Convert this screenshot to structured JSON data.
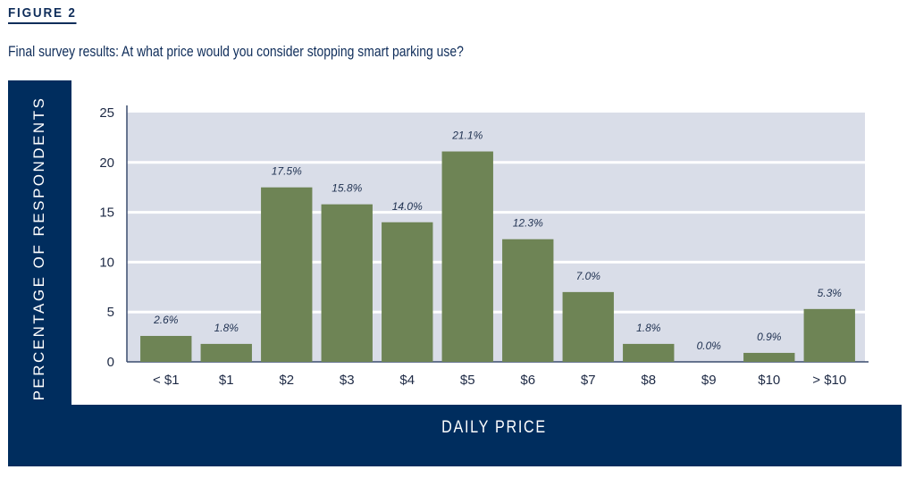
{
  "figure": {
    "label": "FIGURE 2",
    "title": "Final survey results: At what price would you consider stopping smart parking use?"
  },
  "colors": {
    "frame": "#002d5e",
    "plot_bg": "#d9dde8",
    "bar": "#6e8455",
    "grid": "#ffffff"
  },
  "chart_data": {
    "type": "bar",
    "title": "Final survey results: At what price would you consider stopping smart parking use?",
    "xlabel": "DAILY PRICE",
    "ylabel": "PERCENTAGE OF RESPONDENTS",
    "categories": [
      "< $1",
      "$1",
      "$2",
      "$3",
      "$4",
      "$5",
      "$6",
      "$7",
      "$8",
      "$9",
      "$10",
      "> $10"
    ],
    "values": [
      2.6,
      1.8,
      17.5,
      15.8,
      14.0,
      21.1,
      12.3,
      7.0,
      1.8,
      0.0,
      0.9,
      5.3
    ],
    "data_labels": [
      "2.6%",
      "1.8%",
      "17.5%",
      "15.8%",
      "14.0%",
      "21.1%",
      "12.3%",
      "7.0%",
      "1.8%",
      "0.0%",
      "0.9%",
      "5.3%"
    ],
    "ylim": [
      0,
      25
    ],
    "yticks": [
      0,
      5,
      10,
      15,
      20,
      25
    ],
    "grid": true,
    "legend": "none"
  }
}
